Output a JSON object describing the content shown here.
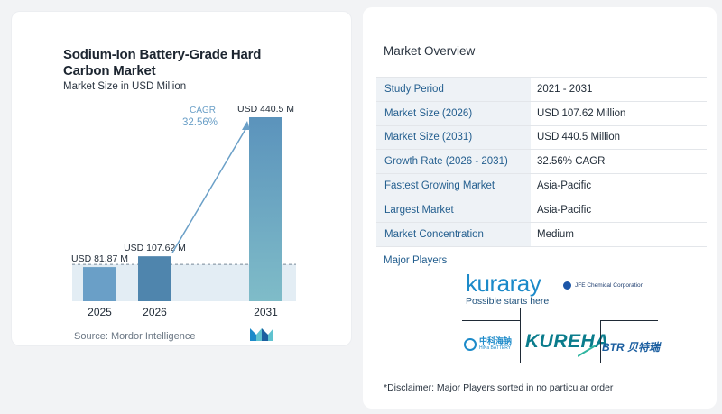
{
  "left_panel": {
    "title": "Sodium-Ion Battery-Grade Hard Carbon Market",
    "subtitle": "Market Size in USD Million",
    "source": "Source: Mordor Intelligence"
  },
  "chart_data": {
    "type": "bar",
    "categories": [
      "2025",
      "2026",
      "2031"
    ],
    "values": [
      81.87,
      107.62,
      440.5
    ],
    "value_labels": [
      "USD 81.87 M",
      "USD 107.62 M",
      "USD 440.5 M"
    ],
    "title": "Sodium-Ion Battery-Grade Hard Carbon Market",
    "subtitle": "Market Size in USD Million",
    "cagr_label": "CAGR",
    "cagr_value": "32.56%",
    "ylim": [
      0,
      440.5
    ],
    "grid": false
  },
  "colors": {
    "bar_light": "#6a9fc7",
    "bar_dark": "#4f85ad",
    "bar_2031_top": "#5b93bc",
    "bar_2031_bottom": "#7fbcc8",
    "cagr": "#6a9fc7",
    "band": "#e3edf4",
    "label_key": "#245f8f"
  },
  "overview": {
    "title": "Market Overview",
    "rows": [
      {
        "label": "Study Period",
        "value": "2021 - 2031"
      },
      {
        "label": "Market Size (2026)",
        "value": "USD 107.62 Million"
      },
      {
        "label": "Market Size (2031)",
        "value": "USD 440.5 Million"
      },
      {
        "label": "Growth Rate (2026 - 2031)",
        "value": "32.56% CAGR"
      },
      {
        "label": "Fastest Growing Market",
        "value": "Asia-Pacific"
      },
      {
        "label": "Largest Market",
        "value": "Asia-Pacific"
      },
      {
        "label": "Market Concentration",
        "value": "Medium"
      }
    ]
  },
  "players": {
    "title": "Major Players",
    "kuraray": "kuraray",
    "kuraray_tagline": "Possible starts here",
    "jfe": "JFE Chemical Corporation",
    "hina": "中科海钠",
    "hina_sub": "HiNa BATTERY",
    "kureha": "KUREHA",
    "btr": "BTR 贝特瑞"
  },
  "disclaimer": "*Disclaimer: Major Players sorted in no particular order"
}
